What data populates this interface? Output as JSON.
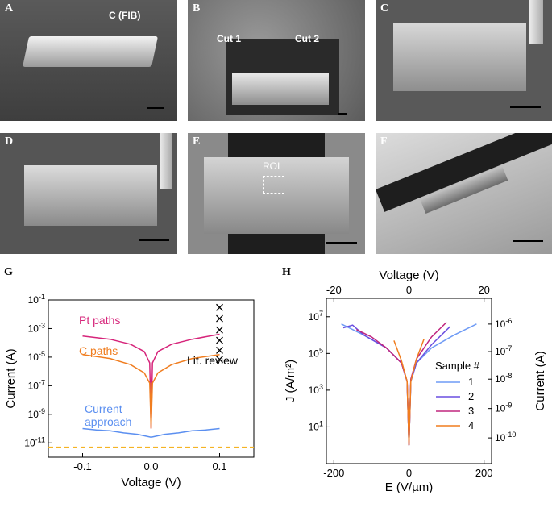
{
  "figure": {
    "panels": {
      "A": {
        "label": "A",
        "annotation": "C (FIB)"
      },
      "B": {
        "label": "B",
        "annotation_1": "Cut 1",
        "annotation_2": "Cut 2"
      },
      "C": {
        "label": "C"
      },
      "D": {
        "label": "D"
      },
      "E": {
        "label": "E",
        "annotation": "ROI"
      },
      "F": {
        "label": "F"
      }
    },
    "G": {
      "label": "G"
    },
    "H": {
      "label": "H"
    }
  },
  "chart_data": [
    {
      "panel": "G",
      "type": "line",
      "xlabel": "Voltage (V)",
      "ylabel": "Current (A)",
      "xlim": [
        -0.15,
        0.15
      ],
      "ylim_log10": [
        -12,
        -1
      ],
      "y_scale": "log",
      "x_ticks": [
        "-0.1",
        "0.0",
        "0.1"
      ],
      "y_ticks": [
        "10-1",
        "10-3",
        "10-5",
        "10-7",
        "10-9",
        "10-11"
      ],
      "y_tick_exponents": [
        -1,
        -3,
        -5,
        -7,
        -9,
        -11
      ],
      "series": [
        {
          "name": "Pt paths",
          "color": "#d6247a",
          "x": [
            -0.1,
            -0.06,
            -0.03,
            -0.01,
            -0.002,
            0.0,
            0.002,
            0.01,
            0.03,
            0.06,
            0.1
          ],
          "y": [
            0.0003,
            0.00018,
            8e-05,
            2.5e-05,
            4e-06,
            1e-10,
            4e-06,
            2.5e-05,
            8e-05,
            0.00018,
            0.0004
          ]
        },
        {
          "name": "C paths",
          "color": "#f07d1f",
          "x": [
            -0.1,
            -0.06,
            -0.03,
            -0.01,
            -0.002,
            0.0,
            0.002,
            0.01,
            0.03,
            0.06,
            0.1
          ],
          "y": [
            1.5e-05,
            8e-06,
            3e-06,
            8e-07,
            1.5e-07,
            1e-10,
            1.5e-07,
            8e-07,
            3e-06,
            8e-06,
            1.5e-05
          ]
        },
        {
          "name": "Current approach",
          "color": "#5b8ff0",
          "x": [
            -0.1,
            -0.08,
            -0.06,
            -0.04,
            -0.02,
            0.0,
            0.02,
            0.04,
            0.06,
            0.08,
            0.1
          ],
          "y": [
            1e-10,
            8e-11,
            7e-11,
            5e-11,
            4e-11,
            2.5e-11,
            4e-11,
            5e-11,
            7e-11,
            8e-11,
            1e-10
          ]
        }
      ],
      "markers": {
        "name": "Lit. review",
        "x": 0.1,
        "y": [
          0.03,
          0.005,
          0.0008,
          0.00015,
          3e-05,
          7e-06
        ]
      },
      "noise_floor": {
        "y": 5e-12,
        "color": "#f5b324"
      }
    },
    {
      "panel": "H",
      "type": "line",
      "xlabel": "E (V/µm)",
      "ylabel": "J (A/m²)",
      "top_xlabel": "Voltage (V)",
      "right_ylabel": "Current (A)",
      "xlim": [
        -220,
        220
      ],
      "ylim_log10": [
        -1,
        8
      ],
      "y_scale": "log",
      "x_ticks": [
        "-200",
        "0",
        "200"
      ],
      "top_x_ticks": [
        "-20",
        "0",
        "20"
      ],
      "y_ticks": [
        "10^7",
        "10^5",
        "10^3",
        "10^1"
      ],
      "y_tick_exponents": [
        7,
        5,
        3,
        1
      ],
      "right_y_ticks": [
        "10^-6",
        "10^-7",
        "10^-8",
        "10^-9",
        "10^-10"
      ],
      "legend_title": "Sample #",
      "series": [
        {
          "name": "1",
          "color": "#6f9bf5",
          "x": [
            -180,
            -120,
            -60,
            -20,
            -5,
            0,
            5,
            20,
            60,
            120,
            180
          ],
          "y": [
            4000000.0,
            1000000.0,
            200000.0,
            30000.0,
            3000.0,
            1,
            3000.0,
            30000.0,
            200000.0,
            1000000.0,
            4000000.0
          ]
        },
        {
          "name": "2",
          "color": "#6a4ee0",
          "x": [
            -175,
            -150,
            -120,
            -60,
            -20,
            -5,
            0,
            5,
            20,
            60,
            110
          ],
          "y": [
            2500000.0,
            3500000.0,
            1000000.0,
            200000.0,
            30000.0,
            3000.0,
            1,
            3000.0,
            30000.0,
            300000.0,
            3000000.0
          ]
        },
        {
          "name": "3",
          "color": "#c0267f",
          "x": [
            -140,
            -100,
            -60,
            -20,
            -5,
            0,
            5,
            20,
            60,
            100
          ],
          "y": [
            2000000.0,
            800000.0,
            200000.0,
            30000.0,
            3000.0,
            1,
            4000.0,
            50000.0,
            800000.0,
            5000000.0
          ]
        },
        {
          "name": "4",
          "color": "#f07d1f",
          "x": [
            -40,
            -20,
            -5,
            0,
            5,
            20,
            40
          ],
          "y": [
            500000.0,
            40000.0,
            3000.0,
            1,
            3000.0,
            50000.0,
            600000.0
          ]
        }
      ]
    }
  ]
}
